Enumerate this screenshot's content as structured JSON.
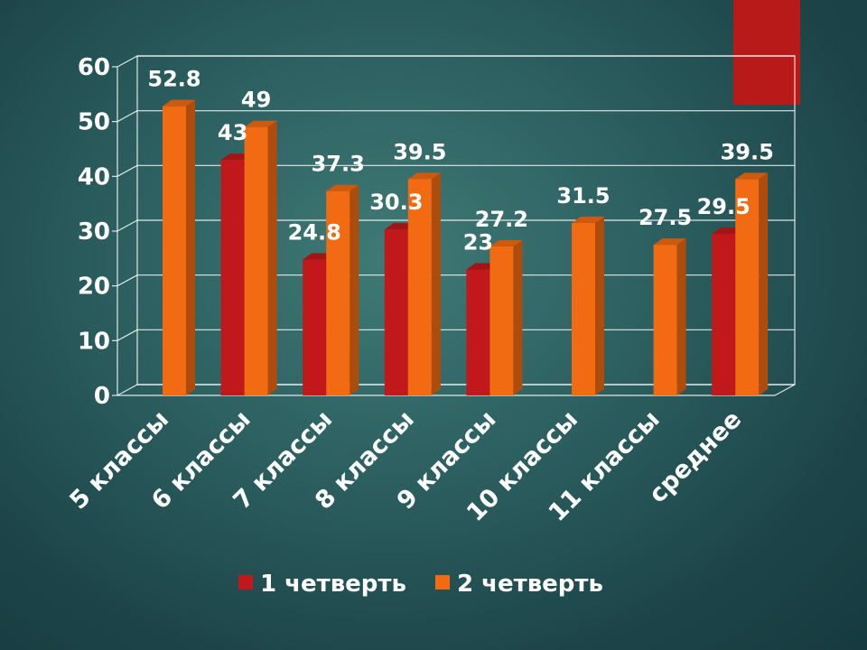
{
  "chart_data": {
    "type": "bar",
    "categories": [
      "5 классы",
      "6 классы",
      "7 классы",
      "8 классы",
      "9 классы",
      "10 классы",
      "11 классы",
      "среднее"
    ],
    "series": [
      {
        "name": "1 четверть",
        "color": "#c0181b",
        "values": [
          null,
          43,
          24.8,
          30.3,
          23,
          null,
          null,
          29.5
        ]
      },
      {
        "name": "2 четверть",
        "color": "#f26a12",
        "values": [
          52.8,
          49,
          37.3,
          39.5,
          27.2,
          31.5,
          27.5,
          39.5
        ]
      }
    ],
    "y_ticks": [
      "0",
      "10",
      "20",
      "30",
      "40",
      "50",
      "60"
    ],
    "ylim": [
      0,
      60
    ],
    "grid": true,
    "legend_position": "bottom",
    "title": "",
    "xlabel": "",
    "ylabel": ""
  }
}
